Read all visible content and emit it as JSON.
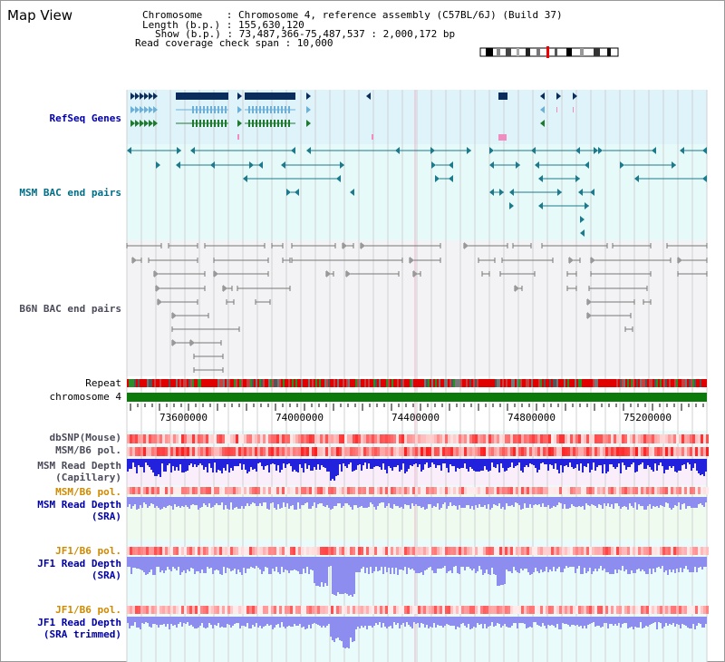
{
  "header": {
    "map_view_title": "Map View",
    "chromosome_line": "Chromosome    : Chromosome 4, reference assembly (C57BL/6J) (Build 37)",
    "length_line": "Length (b.p.) : 155,630,120",
    "show_line": "Show (b.p.) : 73,487,366-75,487,537 : 2,000,172 bp",
    "read_coverage_line": "Read coverage check span : 10,000"
  },
  "tracks": {
    "refseq_genes": "RefSeq Genes",
    "msm_bac": "MSM BAC end pairs",
    "b6n_bac": "B6N BAC end pairs",
    "repeat": "Repeat",
    "chromosome": "chromosome 4",
    "dbsnp": "dbSNP(Mouse)",
    "msm_b6_pol_1": "MSM/B6 pol.",
    "msm_read_depth_cap_1": "MSM Read Depth",
    "msm_read_depth_cap_2": "(Capillary)",
    "msm_b6_pol_2": "MSM/B6 pol.",
    "msm_read_depth_sra_1": "MSM Read Depth",
    "msm_read_depth_sra_2": "(SRA)",
    "jf1_b6_pol_1": "JF1/B6 pol.",
    "jf1_read_depth_sra_1": "JF1 Read Depth",
    "jf1_read_depth_sra_2": "(SRA)",
    "jf1_b6_pol_2": "JF1/B6 pol.",
    "jf1_read_depth_trim_1": "JF1 Read Depth",
    "jf1_read_depth_trim_2": "(SRA trimmed)"
  },
  "axis": {
    "ticks": [
      "73600000",
      "74000000",
      "74400000",
      "74800000",
      "75200000"
    ]
  },
  "colors": {
    "refseq_bg": "#dff3fb",
    "msm_bg": "#e6fafa",
    "b6n_bg": "#f3f3f6",
    "gene_navy": "#0b2d5c",
    "gene_lightblue": "#6bb0d8",
    "gene_green": "#1f7a2f",
    "msm_teal": "#1c7a8c",
    "b6n_gray": "#777777",
    "chrom_green": "#0b7a0b",
    "depth_blue": "#2222dd",
    "depth_lightblue": "#8d8df0",
    "label_blue": "#0000aa",
    "label_teal": "#006e87",
    "label_gray": "#4b4b5a",
    "label_orange": "#d08a00"
  }
}
